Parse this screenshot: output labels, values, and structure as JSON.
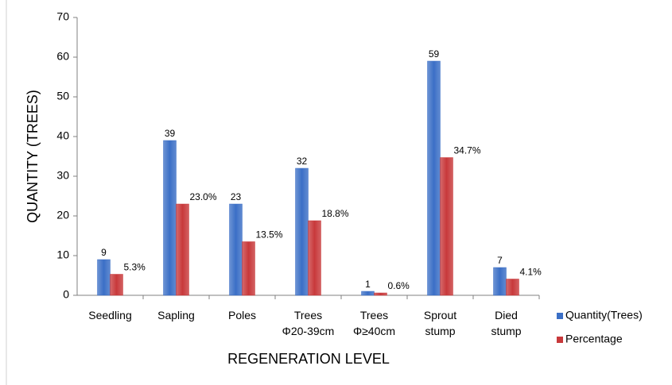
{
  "chart_data": {
    "type": "bar",
    "categories": [
      "Seedling",
      "Sapling",
      "Poles",
      "Trees Φ20-39cm",
      "Trees Φ≥40cm",
      "Sprout stump",
      "Died stump"
    ],
    "series": [
      {
        "name": "Quantity(Trees)",
        "color": "#3b6fc6",
        "values": [
          9,
          39,
          23,
          32,
          1,
          59,
          7
        ]
      },
      {
        "name": "Percentage",
        "color": "#c8393b",
        "values": [
          5.3,
          23.0,
          13.5,
          18.8,
          0.6,
          34.7,
          4.1
        ],
        "value_labels": [
          "5.3%",
          "23.0%",
          "13.5%",
          "18.8%",
          "0.6%",
          "34.7%",
          "4.1%"
        ]
      }
    ],
    "y_label": "QUANTITY (TREES)",
    "x_label": "REGENERATION LEVEL",
    "ylim": [
      0,
      70
    ],
    "yticks": [
      0,
      10,
      20,
      30,
      40,
      50,
      60,
      70
    ],
    "grid": false,
    "legend": "right"
  }
}
